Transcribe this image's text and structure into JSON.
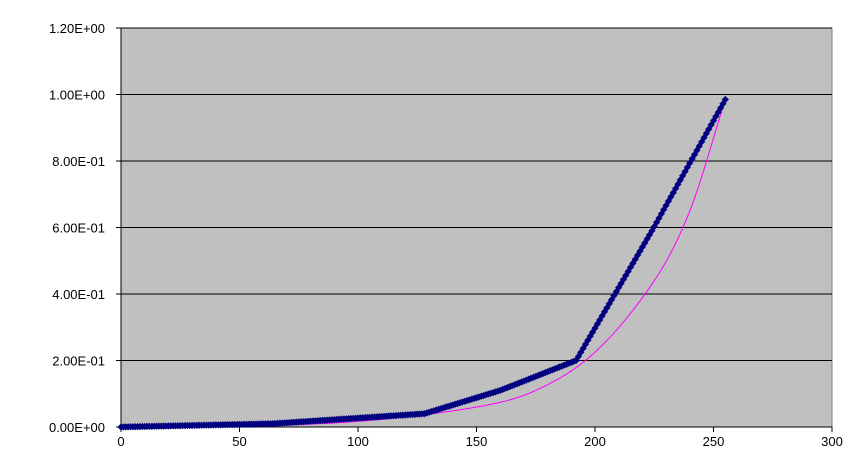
{
  "chart_data": {
    "type": "line",
    "title": "",
    "xlabel": "",
    "ylabel": "",
    "xlim": [
      0,
      300
    ],
    "ylim": [
      0,
      1.2
    ],
    "x_ticks": [
      0,
      50,
      100,
      150,
      200,
      250,
      300
    ],
    "x_tick_labels": [
      "0",
      "50",
      "100",
      "150",
      "200",
      "250",
      "300"
    ],
    "y_ticks": [
      0,
      0.2,
      0.4,
      0.6,
      0.8,
      1.0,
      1.2
    ],
    "y_tick_labels": [
      "0.00E+00",
      "2.00E-01",
      "4.00E-01",
      "6.00E-01",
      "8.00E-01",
      "1.00E+00",
      "1.20E+00"
    ],
    "grid": "horizontal",
    "legend": "none",
    "plot_background": "#c0c0c0",
    "gridline_color": "#000000",
    "series": [
      {
        "name": "",
        "style": "line-with-diamond-markers",
        "color": "#000080",
        "x_range": [
          0,
          255
        ],
        "step": 1,
        "breakpoints": [
          {
            "x": 0,
            "y": 0.0
          },
          {
            "x": 64,
            "y": 0.01
          },
          {
            "x": 96,
            "y": 0.025
          },
          {
            "x": 128,
            "y": 0.04
          },
          {
            "x": 160,
            "y": 0.11
          },
          {
            "x": 192,
            "y": 0.2
          },
          {
            "x": 224,
            "y": 0.59
          },
          {
            "x": 255,
            "y": 0.985
          }
        ]
      },
      {
        "name": "",
        "style": "line",
        "color": "#ff00ff",
        "x_range": [
          0,
          255
        ],
        "step": 1,
        "breakpoints": [
          {
            "x": 0,
            "y": 0.0
          },
          {
            "x": 50,
            "y": 0.003
          },
          {
            "x": 100,
            "y": 0.017
          },
          {
            "x": 150,
            "y": 0.06
          },
          {
            "x": 175,
            "y": 0.11
          },
          {
            "x": 200,
            "y": 0.225
          },
          {
            "x": 225,
            "y": 0.44
          },
          {
            "x": 240,
            "y": 0.65
          },
          {
            "x": 255,
            "y": 0.985
          }
        ]
      }
    ]
  }
}
